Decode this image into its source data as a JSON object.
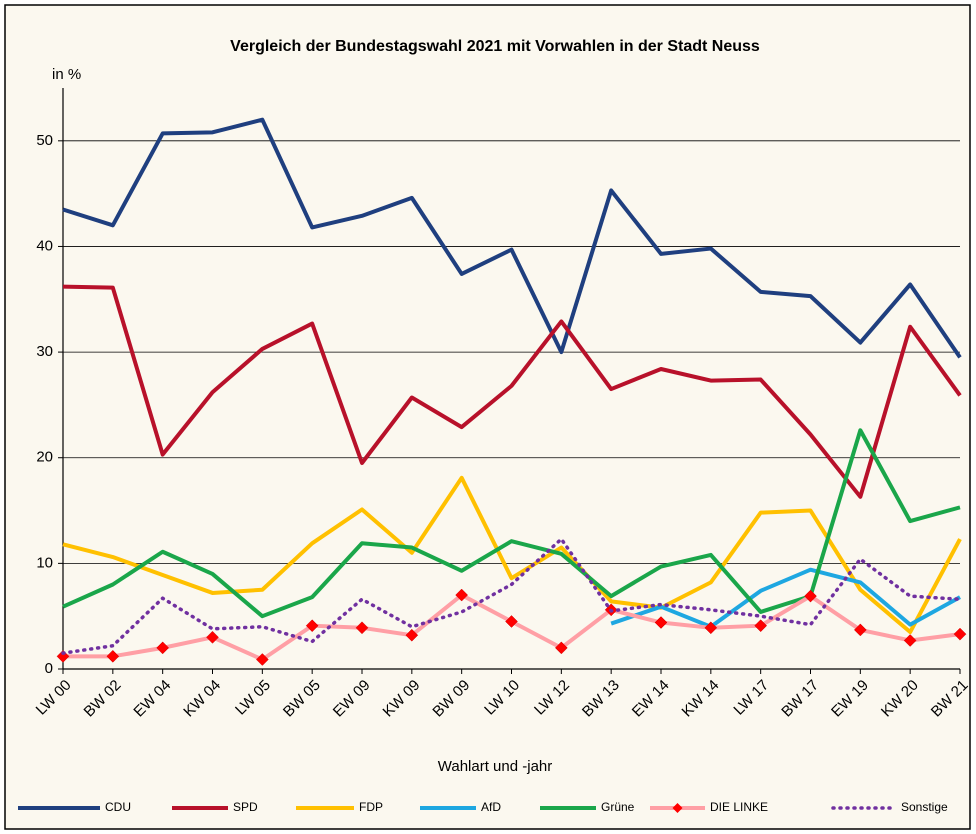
{
  "chart_data": {
    "type": "line",
    "title": "Vergleich der Bundestagswahl 2021 mit Vorwahlen in der Stadt Neuss",
    "y_axis_label": "in %",
    "x_axis_label": "Wahlart und -jahr",
    "categories": [
      "LW 00",
      "BW 02",
      "EW 04",
      "KW 04",
      "LW 05",
      "BW 05",
      "EW 09",
      "KW 09",
      "BW 09",
      "LW 10",
      "LW 12",
      "BW 13",
      "EW 14",
      "KW 14",
      "LW 17",
      "BW 17",
      "EW 19",
      "KW 20",
      "BW 21"
    ],
    "ylim": [
      0,
      55
    ],
    "yticks": [
      0,
      10,
      20,
      30,
      40,
      50
    ],
    "grid": true,
    "legend": "bottom",
    "series": [
      {
        "name": "CDU",
        "color": "#1f3f7f",
        "values": [
          43.5,
          42,
          50.7,
          50.8,
          52,
          41.8,
          42.9,
          44.6,
          37.4,
          39.7,
          30,
          45.3,
          39.3,
          39.8,
          35.7,
          35.3,
          30.9,
          36.4,
          29.5
        ]
      },
      {
        "name": "SPD",
        "color": "#b8112a",
        "values": [
          36.2,
          36.1,
          20.3,
          26.2,
          30.3,
          32.7,
          19.5,
          25.7,
          22.9,
          26.8,
          32.9,
          26.5,
          28.4,
          27.3,
          27.4,
          22.2,
          16.3,
          32.4,
          25.9
        ]
      },
      {
        "name": "FDP",
        "color": "#ffc000",
        "values": [
          11.8,
          10.6,
          8.9,
          7.2,
          7.5,
          11.9,
          15.1,
          11.0,
          18.1,
          8.6,
          11.5,
          6.4,
          5.8,
          8.2,
          14.8,
          15.0,
          7.5,
          3.5,
          12.3
        ]
      },
      {
        "name": "AfD",
        "color": "#1ea7e1",
        "values": [
          null,
          null,
          null,
          null,
          null,
          null,
          null,
          null,
          null,
          null,
          null,
          4.3,
          5.9,
          4.0,
          7.4,
          9.4,
          8.2,
          4.2,
          6.8
        ]
      },
      {
        "name": "Grüne",
        "color": "#1aa64a",
        "values": [
          5.9,
          8.0,
          11.1,
          9.0,
          5.0,
          6.8,
          11.9,
          11.5,
          9.3,
          12.1,
          10.9,
          6.9,
          9.7,
          10.8,
          5.4,
          6.9,
          22.6,
          14.0,
          15.3
        ]
      },
      {
        "name": "DIE LINKE",
        "color": "#ff9fa5",
        "marker_color": "#ff0000",
        "values": [
          1.2,
          1.2,
          2.0,
          3.0,
          0.9,
          4.1,
          3.9,
          3.2,
          7.0,
          4.5,
          2.0,
          5.6,
          4.4,
          3.9,
          4.1,
          6.9,
          3.7,
          2.7,
          3.3
        ]
      },
      {
        "name": "Sonstige",
        "color": "#7030a0",
        "dashed": true,
        "values": [
          1.5,
          2.2,
          6.7,
          3.8,
          4.0,
          2.6,
          6.6,
          4.0,
          5.4,
          8.0,
          12.3,
          5.5,
          6.1,
          5.6,
          5.0,
          4.2,
          10.4,
          6.9,
          6.6
        ]
      }
    ]
  }
}
